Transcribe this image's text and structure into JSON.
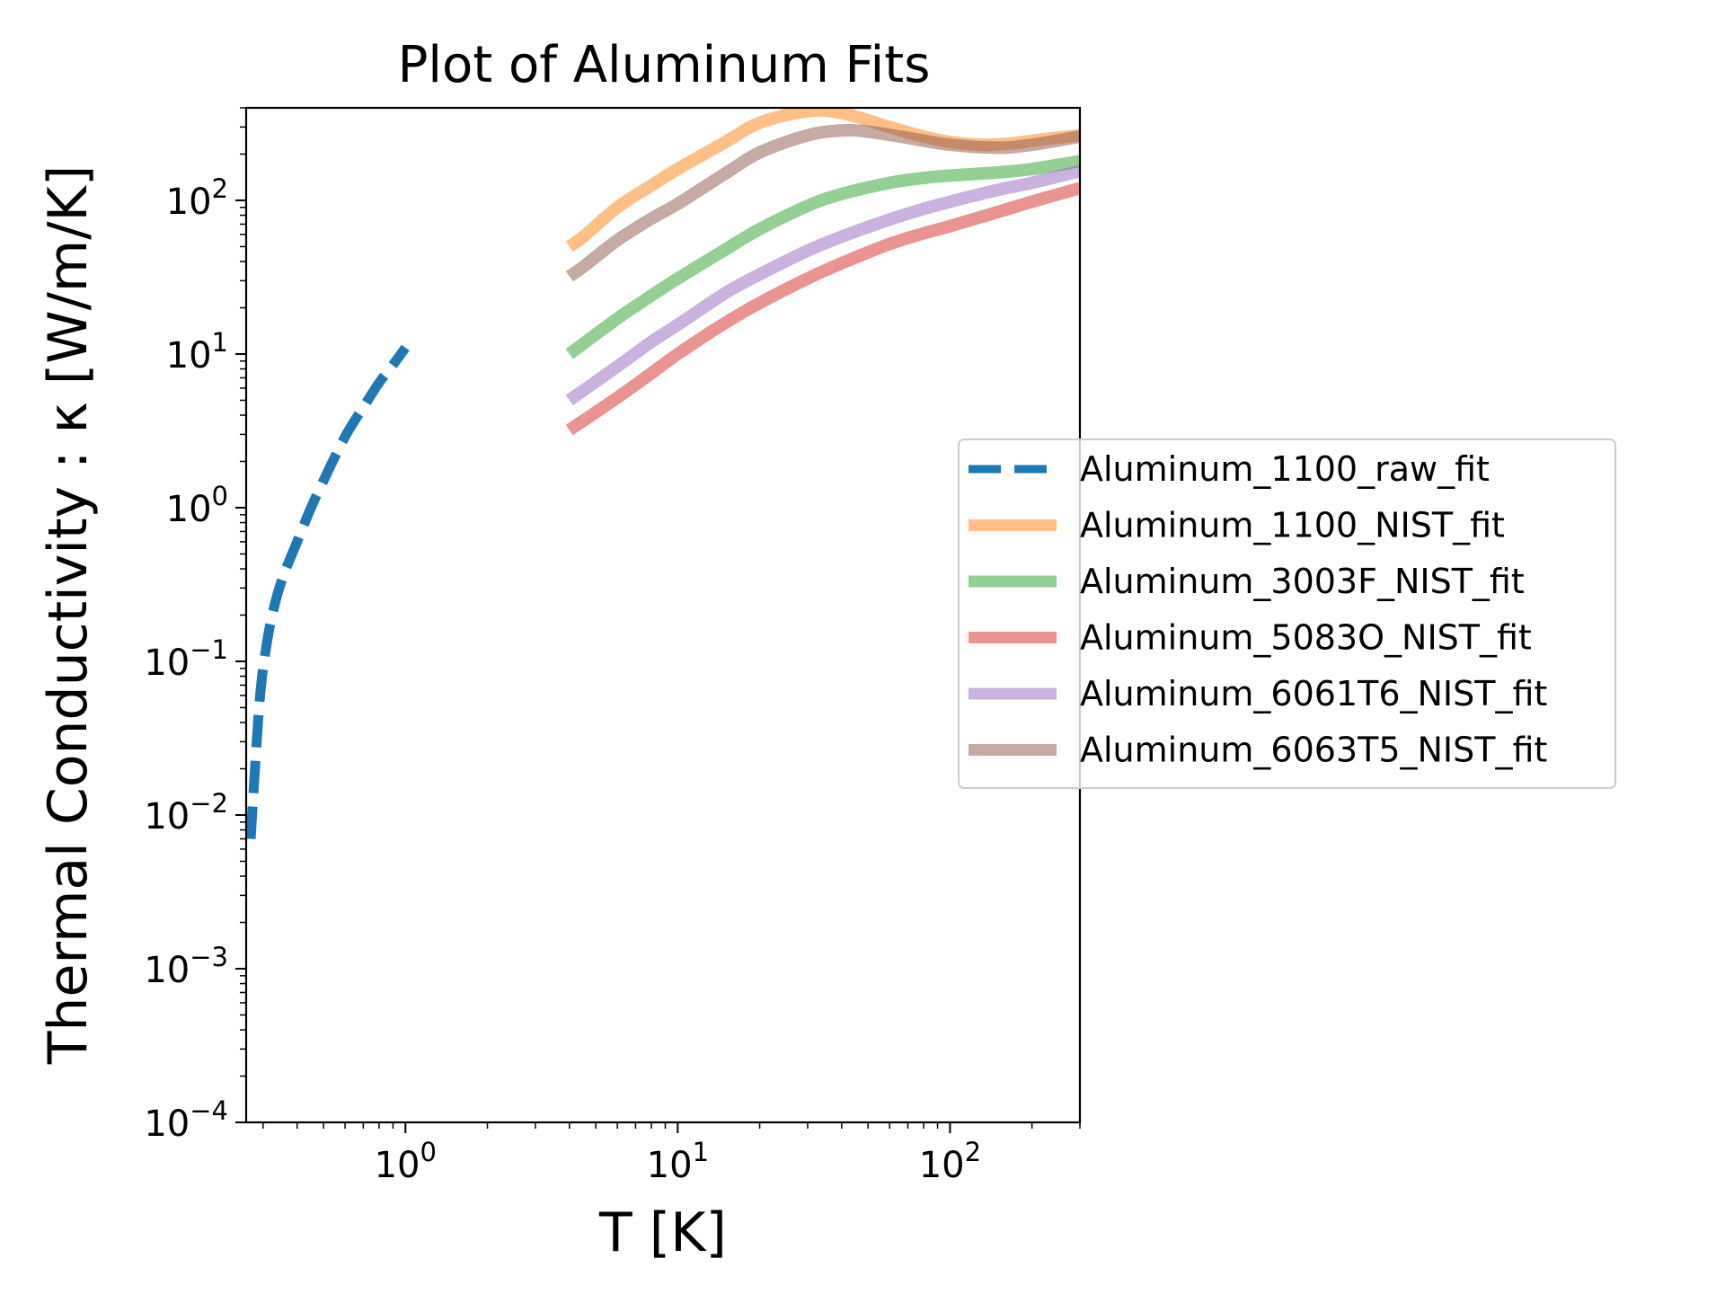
{
  "chart_data": {
    "type": "line",
    "title": "Plot of Aluminum Fits",
    "xlabel": "T [K]",
    "ylabel": "Thermal Conductivity : κ [W/m/K]",
    "xscale": "log",
    "yscale": "log",
    "xlim": [
      0.26,
      300
    ],
    "ylim": [
      0.0001,
      400
    ],
    "grid": false,
    "legend_position": "right, outside axes",
    "x_ticks": [
      {
        "value": 1,
        "base": "10",
        "exp": "0"
      },
      {
        "value": 10,
        "base": "10",
        "exp": "1"
      },
      {
        "value": 100,
        "base": "10",
        "exp": "2"
      }
    ],
    "y_ticks": [
      {
        "value": 0.0001,
        "base": "10",
        "exp": "−4"
      },
      {
        "value": 0.001,
        "base": "10",
        "exp": "−3"
      },
      {
        "value": 0.01,
        "base": "10",
        "exp": "−2"
      },
      {
        "value": 0.1,
        "base": "10",
        "exp": "−1"
      },
      {
        "value": 1,
        "base": "10",
        "exp": "0"
      },
      {
        "value": 10,
        "base": "10",
        "exp": "1"
      },
      {
        "value": 100,
        "base": "10",
        "exp": "2"
      }
    ],
    "series": [
      {
        "name": "Aluminum_1100_raw_fit",
        "color": "#1f77b4",
        "style": "dashed",
        "x": [
          0.27,
          0.28,
          0.29,
          0.3,
          0.32,
          0.35,
          0.4,
          0.45,
          0.5,
          0.6,
          0.7,
          0.8,
          0.9,
          1.0
        ],
        "y": [
          0.007,
          0.02,
          0.05,
          0.09,
          0.18,
          0.33,
          0.6,
          1.0,
          1.5,
          2.9,
          4.5,
          6.5,
          8.5,
          11
        ]
      },
      {
        "name": "Aluminum_1100_NIST_fit",
        "color": "#ff7f0e",
        "style": "solid",
        "x": [
          4,
          4.5,
          6,
          8,
          10,
          15,
          20,
          30,
          40,
          60,
          80,
          100,
          130,
          170,
          220,
          300
        ],
        "y": [
          50,
          58,
          90,
          125,
          160,
          240,
          320,
          380,
          370,
          300,
          260,
          240,
          230,
          235,
          250,
          265
        ]
      },
      {
        "name": "Aluminum_3003F_NIST_fit",
        "color": "#2ca02c",
        "style": "solid",
        "x": [
          4,
          6,
          8,
          10,
          15,
          20,
          30,
          40,
          60,
          80,
          100,
          150,
          200,
          300
        ],
        "y": [
          10,
          17,
          24,
          31,
          48,
          65,
          92,
          110,
          130,
          140,
          145,
          152,
          160,
          180
        ]
      },
      {
        "name": "Aluminum_5083O_NIST_fit",
        "color": "#d62728",
        "style": "solid",
        "x": [
          4,
          6,
          8,
          10,
          15,
          20,
          30,
          40,
          60,
          80,
          100,
          150,
          200,
          300
        ],
        "y": [
          3.2,
          5.2,
          7.5,
          10,
          16,
          21.5,
          31,
          39,
          52,
          61,
          68,
          84,
          98,
          120
        ]
      },
      {
        "name": "Aluminum_6061T6_NIST_fit",
        "color": "#9467bd",
        "style": "solid",
        "x": [
          4,
          6,
          8,
          10,
          15,
          20,
          30,
          40,
          60,
          80,
          100,
          150,
          200,
          300
        ],
        "y": [
          5,
          8.3,
          12,
          15.5,
          25,
          33,
          47,
          58,
          75,
          88,
          98,
          117,
          130,
          155
        ]
      },
      {
        "name": "Aluminum_6063T5_NIST_fit",
        "color": "#8c564b",
        "style": "solid",
        "x": [
          4,
          4.5,
          6,
          8,
          10,
          15,
          20,
          30,
          40,
          50,
          70,
          100,
          150,
          200,
          300
        ],
        "y": [
          32,
          37,
          55,
          76,
          95,
          150,
          205,
          265,
          285,
          280,
          255,
          230,
          220,
          230,
          260
        ]
      }
    ]
  }
}
